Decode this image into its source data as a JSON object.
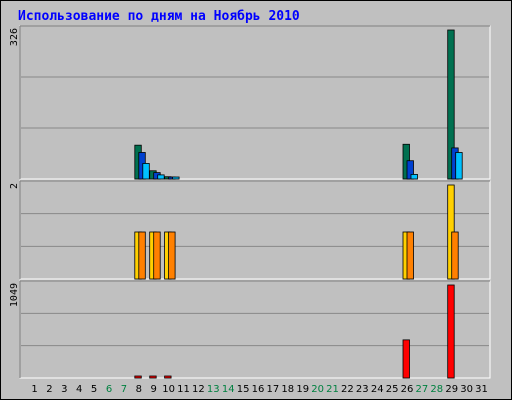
{
  "page": {
    "title": "Использование по дням на Ноябрь 2010",
    "colors": {
      "background": "#c0c0c0",
      "title": "#0000ff",
      "weekend_label": "#008040",
      "weekday_label": "#000000"
    }
  },
  "chart_data": [
    {
      "type": "bar",
      "title": "Использование по дням на Ноябрь 2010",
      "panel": "top",
      "ylabel": "326",
      "ylim": [
        0,
        326
      ],
      "grid": true,
      "categories": [
        "1",
        "2",
        "3",
        "4",
        "5",
        "6",
        "7",
        "8",
        "9",
        "10",
        "11",
        "12",
        "13",
        "14",
        "15",
        "16",
        "17",
        "18",
        "19",
        "20",
        "21",
        "22",
        "23",
        "24",
        "25",
        "26",
        "27",
        "28",
        "29",
        "30",
        "31"
      ],
      "series": [
        {
          "color": "#007050",
          "values": [
            0,
            0,
            0,
            0,
            0,
            0,
            0,
            74,
            18,
            5,
            0,
            0,
            0,
            0,
            0,
            0,
            0,
            0,
            0,
            0,
            0,
            0,
            0,
            0,
            0,
            76,
            0,
            0,
            326,
            0,
            0
          ]
        },
        {
          "color": "#0040d0",
          "values": [
            0,
            0,
            0,
            0,
            0,
            0,
            0,
            58,
            14,
            4,
            0,
            0,
            0,
            0,
            0,
            0,
            0,
            0,
            0,
            0,
            0,
            0,
            0,
            0,
            0,
            40,
            0,
            0,
            68,
            0,
            0
          ]
        },
        {
          "color": "#00c0ff",
          "values": [
            0,
            0,
            0,
            0,
            0,
            0,
            0,
            34,
            9,
            2,
            0,
            0,
            0,
            0,
            0,
            0,
            0,
            0,
            0,
            0,
            0,
            0,
            0,
            0,
            0,
            10,
            0,
            0,
            58,
            0,
            0
          ]
        }
      ]
    },
    {
      "type": "bar",
      "panel": "middle",
      "ylabel": "2",
      "ylim": [
        0,
        2
      ],
      "grid": true,
      "categories": [
        "1",
        "2",
        "3",
        "4",
        "5",
        "6",
        "7",
        "8",
        "9",
        "10",
        "11",
        "12",
        "13",
        "14",
        "15",
        "16",
        "17",
        "18",
        "19",
        "20",
        "21",
        "22",
        "23",
        "24",
        "25",
        "26",
        "27",
        "28",
        "29",
        "30",
        "31"
      ],
      "series": [
        {
          "color": "#ffd000",
          "values": [
            0,
            0,
            0,
            0,
            0,
            0,
            0,
            1,
            1,
            1,
            0,
            0,
            0,
            0,
            0,
            0,
            0,
            0,
            0,
            0,
            0,
            0,
            0,
            0,
            0,
            1,
            0,
            0,
            2,
            0,
            0
          ]
        },
        {
          "color": "#ff8000",
          "values": [
            0,
            0,
            0,
            0,
            0,
            0,
            0,
            1,
            1,
            1,
            0,
            0,
            0,
            0,
            0,
            0,
            0,
            0,
            0,
            0,
            0,
            0,
            0,
            0,
            0,
            1,
            0,
            0,
            1,
            0,
            0
          ]
        }
      ]
    },
    {
      "type": "bar",
      "panel": "bottom",
      "ylabel": "1049",
      "ylim": [
        0,
        1049
      ],
      "grid": true,
      "categories": [
        "1",
        "2",
        "3",
        "4",
        "5",
        "6",
        "7",
        "8",
        "9",
        "10",
        "11",
        "12",
        "13",
        "14",
        "15",
        "16",
        "17",
        "18",
        "19",
        "20",
        "21",
        "22",
        "23",
        "24",
        "25",
        "26",
        "27",
        "28",
        "29",
        "30",
        "31"
      ],
      "series": [
        {
          "color": "#ff0000",
          "values": [
            0,
            0,
            0,
            0,
            0,
            0,
            0,
            22,
            22,
            11,
            0,
            0,
            0,
            0,
            0,
            0,
            0,
            0,
            0,
            0,
            0,
            0,
            0,
            0,
            0,
            430,
            0,
            0,
            1049,
            0,
            0
          ]
        }
      ]
    }
  ],
  "x_axis": {
    "labels": [
      "1",
      "2",
      "3",
      "4",
      "5",
      "6",
      "7",
      "8",
      "9",
      "10",
      "11",
      "12",
      "13",
      "14",
      "15",
      "16",
      "17",
      "18",
      "19",
      "20",
      "21",
      "22",
      "23",
      "24",
      "25",
      "26",
      "27",
      "28",
      "29",
      "30",
      "31"
    ],
    "weekend_days": [
      "6",
      "7",
      "13",
      "14",
      "20",
      "21",
      "27",
      "28"
    ]
  }
}
